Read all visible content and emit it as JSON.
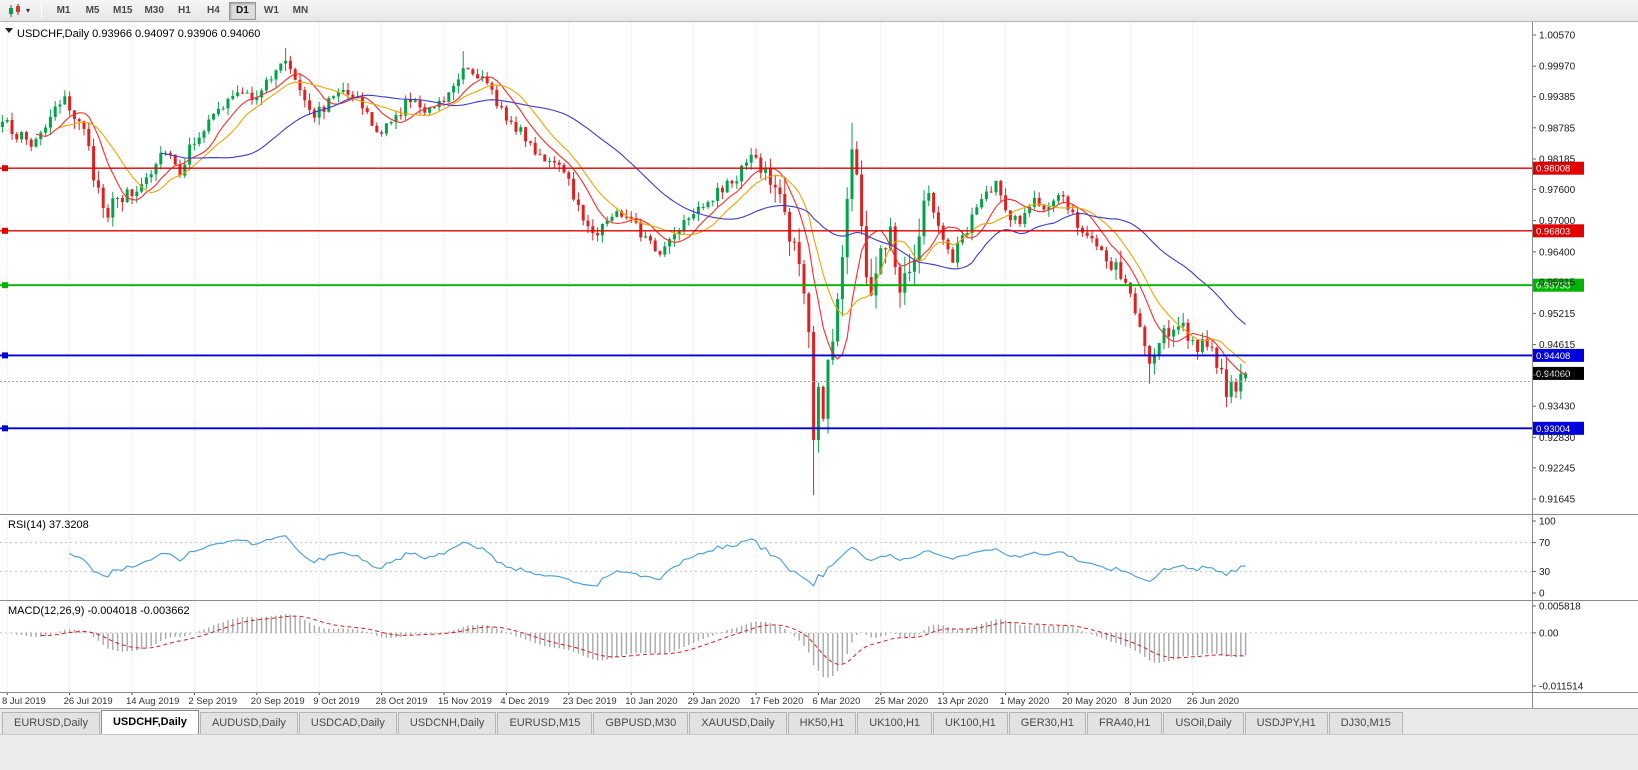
{
  "colors": {
    "bull": "#00a24a",
    "bear": "#e02020",
    "ma_fast": "#ff2a2a",
    "ma_mid": "#f0a500",
    "ma_slow": "#3b3bd0",
    "rsi_line": "#4fa3dc",
    "macd_hist": "#a8a8a8",
    "macd_signal": "#d42020",
    "grid": "#d6d6d6",
    "separator": "#8c8c8c",
    "level_red": "#e00000",
    "level_green": "#00b400",
    "level_blue": "#0000dc",
    "current_price_bg": "#000000",
    "bid_line": "#a8a8a8"
  },
  "toolbar": {
    "timeframes": [
      "M1",
      "M5",
      "M15",
      "M30",
      "H1",
      "H4",
      "D1",
      "W1",
      "MN"
    ],
    "active": "D1"
  },
  "chart_header": {
    "symbol": "USDCHF",
    "period": "Daily",
    "display": "USDCHF,Daily 0.93966 0.94097 0.93906 0.94060"
  },
  "rsi_panel": {
    "display": "RSI(14) 37.3208",
    "ticks": [
      100,
      70,
      30,
      0
    ]
  },
  "macd_panel": {
    "display": "MACD(12,26,9) -0.004018 -0.003662",
    "ticks": [
      {
        "label": "0.005818",
        "value": 0.005818
      },
      {
        "label": "0.00",
        "value": 0
      },
      {
        "label": "-0.011514",
        "value": -0.011514
      }
    ]
  },
  "price_axis_ticks": [
    "1.00570",
    "0.99970",
    "0.99385",
    "0.98785",
    "0.98185",
    "0.97600",
    "0.97000",
    "0.96400",
    "0.95815",
    "0.95215",
    "0.94615",
    "0.94030",
    "0.93430",
    "0.92830",
    "0.92245",
    "0.91645"
  ],
  "time_axis": [
    "8 Jul 2019",
    "26 Jul 2019",
    "14 Aug 2019",
    "2 Sep 2019",
    "20 Sep 2019",
    "9 Oct 2019",
    "28 Oct 2019",
    "15 Nov 2019",
    "4 Dec 2019",
    "23 Dec 2019",
    "10 Jan 2020",
    "29 Jan 2020",
    "17 Feb 2020",
    "6 Mar 2020",
    "25 Mar 2020",
    "13 Apr 2020",
    "1 May 2020",
    "20 May 2020",
    "8 Jun 2020",
    "26 Jun 2020"
  ],
  "tabs": {
    "active_index": 1,
    "items": [
      "EURUSD,Daily",
      "USDCHF,Daily",
      "AUDUSD,Daily",
      "USDCAD,Daily",
      "USDCNH,Daily",
      "EURUSD,M15",
      "GBPUSD,M30",
      "XAUUSD,Daily",
      "HK50,H1",
      "UK100,H1",
      "UK100,H1",
      "GER30,H1",
      "FRA40,H1",
      "USOil,Daily",
      "USDJPY,H1",
      "DJ30,M15"
    ]
  },
  "chart_data": {
    "type": "candlestick",
    "symbol": "USDCHF",
    "timeframe": "D1",
    "title": "USDCHF,Daily",
    "y_range": [
      0.91645,
      1.0057
    ],
    "candles_total": 260,
    "current_candle": {
      "open": 0.93966,
      "high": 0.94097,
      "low": 0.93906,
      "close": 0.9406
    },
    "levels": [
      {
        "value": 0.98008,
        "label": "0.98008",
        "color_key": "level_red"
      },
      {
        "value": 0.96803,
        "label": "0.96803",
        "color_key": "level_red"
      },
      {
        "value": 0.95758,
        "label": "0.95758",
        "color_key": "level_green"
      },
      {
        "value": 0.94408,
        "label": "0.94408",
        "color_key": "level_blue"
      },
      {
        "value": 0.93004,
        "label": "0.93004",
        "color_key": "level_blue"
      }
    ],
    "current_price": {
      "value": 0.9406,
      "label": "0.94060"
    },
    "bid_price": 0.93906,
    "moving_averages": [
      {
        "name": "fast",
        "period": 8,
        "color_key": "ma_fast"
      },
      {
        "name": "mid",
        "period": 13,
        "color_key": "ma_mid"
      },
      {
        "name": "slow",
        "period": 34,
        "color_key": "ma_slow"
      }
    ],
    "rsi": {
      "period": 14,
      "current": 37.3208,
      "levels": [
        70,
        30
      ]
    },
    "macd": {
      "fast": 12,
      "slow": 26,
      "signal": 9,
      "current": -0.004018,
      "current_signal": -0.003662
    },
    "close_anchors": [
      [
        0,
        0.989
      ],
      [
        3,
        0.9868
      ],
      [
        6,
        0.9845
      ],
      [
        10,
        0.9898
      ],
      [
        13,
        0.9928
      ],
      [
        16,
        0.9902
      ],
      [
        19,
        0.9788
      ],
      [
        22,
        0.9718
      ],
      [
        25,
        0.9742
      ],
      [
        28,
        0.9758
      ],
      [
        31,
        0.98
      ],
      [
        34,
        0.9842
      ],
      [
        37,
        0.9795
      ],
      [
        40,
        0.9858
      ],
      [
        44,
        0.9898
      ],
      [
        48,
        0.9942
      ],
      [
        52,
        0.9938
      ],
      [
        56,
        0.9972
      ],
      [
        59,
        1.0012
      ],
      [
        62,
        0.9958
      ],
      [
        65,
        0.9904
      ],
      [
        68,
        0.9928
      ],
      [
        71,
        0.9962
      ],
      [
        74,
        0.9932
      ],
      [
        78,
        0.9868
      ],
      [
        81,
        0.9884
      ],
      [
        84,
        0.9928
      ],
      [
        88,
        0.9918
      ],
      [
        92,
        0.9934
      ],
      [
        96,
        0.9998
      ],
      [
        99,
        0.9984
      ],
      [
        103,
        0.9928
      ],
      [
        107,
        0.9878
      ],
      [
        111,
        0.9838
      ],
      [
        115,
        0.9804
      ],
      [
        118,
        0.9778
      ],
      [
        121,
        0.97
      ],
      [
        124,
        0.9678
      ],
      [
        127,
        0.9712
      ],
      [
        131,
        0.9714
      ],
      [
        134,
        0.9662
      ],
      [
        137,
        0.9638
      ],
      [
        140,
        0.9678
      ],
      [
        144,
        0.9724
      ],
      [
        148,
        0.9744
      ],
      [
        152,
        0.9774
      ],
      [
        156,
        0.9822
      ],
      [
        159,
        0.9792
      ],
      [
        162,
        0.9748
      ],
      [
        165,
        0.9648
      ],
      [
        167,
        0.956
      ],
      [
        168,
        0.9478
      ],
      [
        169,
        0.9285
      ],
      [
        170,
        0.9358
      ],
      [
        171,
        0.933
      ],
      [
        172,
        0.9418
      ],
      [
        173,
        0.9488
      ],
      [
        174,
        0.9548
      ],
      [
        175,
        0.9628
      ],
      [
        176,
        0.9758
      ],
      [
        177,
        0.9848
      ],
      [
        178,
        0.9788
      ],
      [
        179,
        0.9678
      ],
      [
        180,
        0.9608
      ],
      [
        181,
        0.9558
      ],
      [
        182,
        0.9598
      ],
      [
        183,
        0.9628
      ],
      [
        185,
        0.9698
      ],
      [
        187,
        0.9578
      ],
      [
        190,
        0.9648
      ],
      [
        193,
        0.9758
      ],
      [
        196,
        0.9658
      ],
      [
        198,
        0.9628
      ],
      [
        201,
        0.9688
      ],
      [
        204,
        0.9738
      ],
      [
        207,
        0.9768
      ],
      [
        209,
        0.9718
      ],
      [
        212,
        0.9698
      ],
      [
        215,
        0.9738
      ],
      [
        218,
        0.9718
      ],
      [
        221,
        0.9748
      ],
      [
        224,
        0.9698
      ],
      [
        227,
        0.9658
      ],
      [
        230,
        0.9618
      ],
      [
        233,
        0.9598
      ],
      [
        236,
        0.9528
      ],
      [
        239,
        0.9418
      ],
      [
        242,
        0.9478
      ],
      [
        245,
        0.9508
      ],
      [
        248,
        0.9468
      ],
      [
        251,
        0.9448
      ],
      [
        253,
        0.9428
      ],
      [
        255,
        0.9378
      ],
      [
        257,
        0.9368
      ],
      [
        258,
        0.9396
      ],
      [
        259,
        0.9406
      ]
    ],
    "wick_events": [
      {
        "i": 21,
        "low": 0.9705
      },
      {
        "i": 59,
        "high": 1.0032
      },
      {
        "i": 96,
        "high": 1.0026
      },
      {
        "i": 156,
        "high": 0.984
      },
      {
        "i": 169,
        "low": 0.9172
      },
      {
        "i": 177,
        "high": 0.9888
      },
      {
        "i": 239,
        "low": 0.9386
      },
      {
        "i": 256,
        "low": 0.9362
      }
    ]
  }
}
